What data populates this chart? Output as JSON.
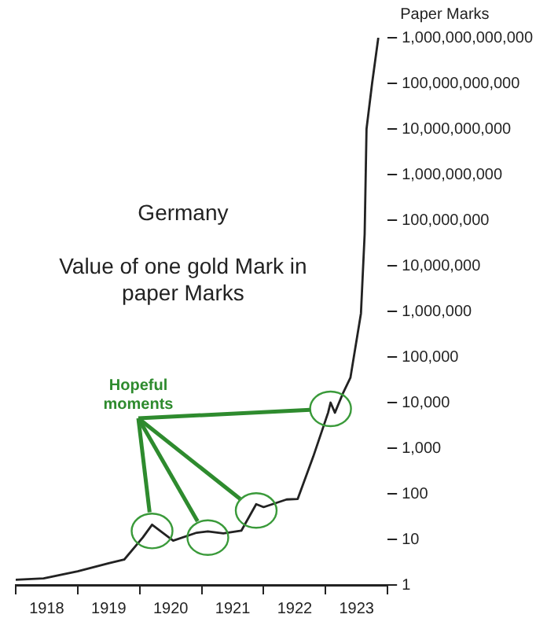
{
  "chart_data": {
    "type": "line",
    "title": "Germany",
    "subtitle": "Value of one gold Mark in paper Marks",
    "ylabel": "Paper Marks",
    "x": [
      1918.0,
      1918.45,
      1919.0,
      1919.5,
      1919.75,
      1920.05,
      1920.2,
      1920.54,
      1920.92,
      1921.1,
      1921.35,
      1921.64,
      1921.88,
      1922.0,
      1922.37,
      1922.55,
      1922.8,
      1923.04,
      1923.08,
      1923.15,
      1923.28,
      1923.4,
      1923.57,
      1923.63,
      1923.66,
      1923.75,
      1923.85
    ],
    "series": [
      {
        "color": "#222222",
        "values": [
          1.3,
          1.4,
          2,
          3,
          3.6,
          11,
          21,
          9.4,
          14,
          15,
          13.5,
          15.5,
          59,
          51,
          75,
          77,
          650,
          6000,
          10000,
          6000,
          16000,
          35000,
          900000,
          50000000,
          10000000000,
          100000000000,
          1000000000000
        ]
      }
    ],
    "xlim": [
      1918,
      1924
    ],
    "xticks": [
      {
        "value": 1918,
        "label": null
      },
      {
        "value": 1918.5,
        "label": "1918"
      },
      {
        "value": 1919,
        "label": null
      },
      {
        "value": 1919.5,
        "label": "1919"
      },
      {
        "value": 1920,
        "label": null
      },
      {
        "value": 1920.5,
        "label": "1920"
      },
      {
        "value": 1921,
        "label": null
      },
      {
        "value": 1921.5,
        "label": "1921"
      },
      {
        "value": 1922,
        "label": null
      },
      {
        "value": 1922.5,
        "label": "1922"
      },
      {
        "value": 1923,
        "label": null
      },
      {
        "value": 1923.5,
        "label": "1923"
      },
      {
        "value": 1924,
        "label": null
      }
    ],
    "ylim": [
      1,
      1000000000000
    ],
    "yticks": [
      1,
      10,
      100,
      {
        "value": 1000,
        "label": "1,000"
      },
      {
        "value": 10000,
        "label": "10,000"
      },
      {
        "value": 100000,
        "label": "100,000"
      },
      {
        "value": 1000000,
        "label": "1,000,000"
      },
      {
        "value": 10000000,
        "label": "10,000,000"
      },
      {
        "value": 100000000,
        "label": "100,000,000"
      },
      {
        "value": 1000000000,
        "label": "1,000,000,000"
      },
      {
        "value": 10000000000,
        "label": "10,000,000,000"
      },
      {
        "value": 100000000000,
        "label": "100,000,000,000"
      },
      {
        "value": 1000000000000,
        "label": "1,000,000,000,000"
      }
    ],
    "log": "y",
    "grid": false,
    "legend": false,
    "marker": "none",
    "line_style": "solid",
    "annotations": [
      "Hopeful moments"
    ]
  }
}
